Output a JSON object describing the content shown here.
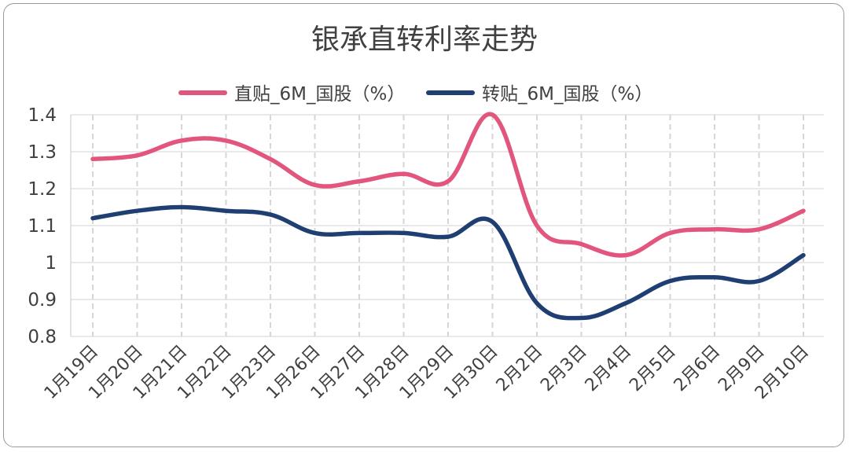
{
  "chart_data": {
    "type": "line",
    "title": "银承直转利率走势",
    "xlabel": "",
    "ylabel": "",
    "ylim": [
      0.8,
      1.4
    ],
    "yticks": [
      0.8,
      0.9,
      1,
      1.1,
      1.2,
      1.3,
      1.4
    ],
    "ytick_labels": [
      "0.8",
      "0.9",
      "1",
      "1.1",
      "1.2",
      "1.3",
      "1.4"
    ],
    "grid": true,
    "legend_position": "top-center",
    "categories": [
      "1月19日",
      "1月20日",
      "1月21日",
      "1月22日",
      "1月23日",
      "1月26日",
      "1月27日",
      "1月28日",
      "1月29日",
      "1月30日",
      "2月2日",
      "2月3日",
      "2月4日",
      "2月5日",
      "2月6日",
      "2月9日",
      "2月10日"
    ],
    "series": [
      {
        "name": "直贴_6M_国股（%）",
        "color": "#e2557c",
        "values": [
          1.28,
          1.29,
          1.33,
          1.33,
          1.28,
          1.21,
          1.22,
          1.24,
          1.22,
          1.4,
          1.1,
          1.05,
          1.02,
          1.08,
          1.09,
          1.09,
          1.14
        ]
      },
      {
        "name": "转贴_6M_国股（%）",
        "color": "#1f3f72",
        "values": [
          1.12,
          1.14,
          1.15,
          1.14,
          1.13,
          1.08,
          1.08,
          1.08,
          1.07,
          1.11,
          0.89,
          0.85,
          0.89,
          0.95,
          0.96,
          0.95,
          1.02
        ]
      }
    ]
  }
}
